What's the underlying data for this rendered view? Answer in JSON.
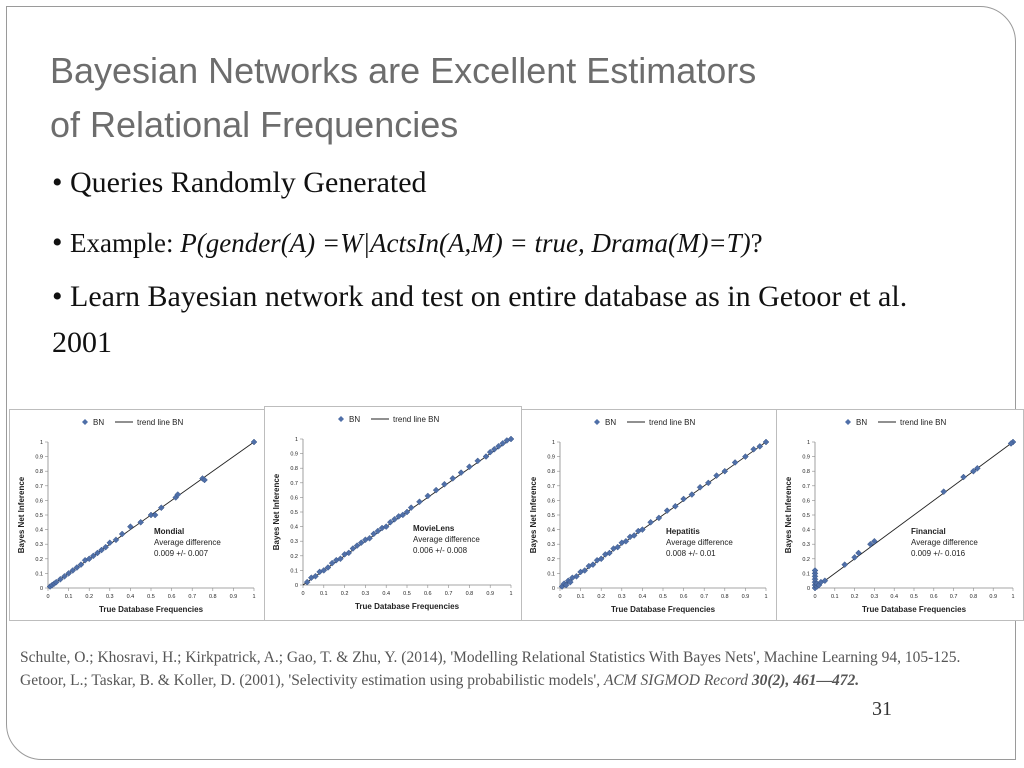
{
  "slide": {
    "title_line1": "Bayesian Networks are Excellent Estimators",
    "title_line2": "of Relational Frequencies",
    "bullet1": "Queries Randomly Generated",
    "bullet2_prefix": "Example: ",
    "bullet2_math": "P(gender(A) =W|ActsIn(A,M) = true, Drama(M)=T)",
    "bullet2_suffix": "?",
    "bullet3": "Learn Bayesian network and test on entire database as in Getoor et al. 2001",
    "page_number": "31"
  },
  "references": {
    "ref1": "Schulte, O.; Khosravi, H.; Kirkpatrick, A.; Gao, T. & Zhu, Y. (2014), 'Modelling Relational Statistics With Bayes Nets', Machine Learning 94, 105-125.",
    "ref2_plain": "Getoor, L.; Taskar, B. & Koller, D. (2001), 'Selectivity estimation using probabilistic models', ",
    "ref2_journal": "ACM SIGMOD Record",
    "ref2_vol": " 30(2), 461—472."
  },
  "chart_data": [
    {
      "type": "scatter",
      "dataset": "Mondial",
      "avg_label": "Average difference",
      "avg_value": "0.009 +/- 0.007",
      "legend": [
        "BN",
        "trend line BN"
      ],
      "xlabel": "True Database Frequencies",
      "ylabel": "Bayes Net Inference",
      "xlim": [
        0,
        1
      ],
      "ylim": [
        0,
        1
      ],
      "xticks": [
        "0",
        "0.1",
        "0.2",
        "0.3",
        "0.4",
        "0.5",
        "0.6",
        "0.7",
        "0.8",
        "0.9",
        "1"
      ],
      "yticks": [
        "0",
        "0.1",
        "0.2",
        "0.3",
        "0.4",
        "0.5",
        "0.6",
        "0.7",
        "0.8",
        "0.9",
        "1"
      ],
      "points": [
        [
          0.01,
          0.01
        ],
        [
          0.02,
          0.02
        ],
        [
          0.03,
          0.03
        ],
        [
          0.04,
          0.04
        ],
        [
          0.06,
          0.06
        ],
        [
          0.08,
          0.08
        ],
        [
          0.1,
          0.1
        ],
        [
          0.12,
          0.12
        ],
        [
          0.14,
          0.14
        ],
        [
          0.16,
          0.16
        ],
        [
          0.18,
          0.19
        ],
        [
          0.2,
          0.2
        ],
        [
          0.22,
          0.22
        ],
        [
          0.24,
          0.24
        ],
        [
          0.26,
          0.26
        ],
        [
          0.28,
          0.28
        ],
        [
          0.3,
          0.31
        ],
        [
          0.33,
          0.33
        ],
        [
          0.36,
          0.37
        ],
        [
          0.4,
          0.42
        ],
        [
          0.45,
          0.45
        ],
        [
          0.5,
          0.5
        ],
        [
          0.52,
          0.5
        ],
        [
          0.55,
          0.55
        ],
        [
          0.62,
          0.62
        ],
        [
          0.63,
          0.64
        ],
        [
          0.75,
          0.75
        ],
        [
          0.76,
          0.74
        ],
        [
          1.0,
          1.0
        ]
      ]
    },
    {
      "type": "scatter",
      "dataset": "MovieLens",
      "avg_label": "Average difference",
      "avg_value": "0.006 +/- 0.008",
      "legend": [
        "BN",
        "trend line BN"
      ],
      "xlabel": "True Database Frequencies",
      "ylabel": "Bayes Net Inference",
      "xlim": [
        0,
        1
      ],
      "ylim": [
        0,
        1
      ],
      "xticks": [
        "0",
        "0.1",
        "0.2",
        "0.3",
        "0.4",
        "0.5",
        "0.6",
        "0.7",
        "0.8",
        "0.9",
        "1"
      ],
      "yticks": [
        "0",
        "0.1",
        "0.2",
        "0.3",
        "0.4",
        "0.5",
        "0.6",
        "0.7",
        "0.8",
        "0.9",
        "1"
      ],
      "points": [
        [
          0.02,
          0.02
        ],
        [
          0.04,
          0.05
        ],
        [
          0.06,
          0.06
        ],
        [
          0.08,
          0.09
        ],
        [
          0.1,
          0.1
        ],
        [
          0.12,
          0.12
        ],
        [
          0.14,
          0.15
        ],
        [
          0.16,
          0.17
        ],
        [
          0.18,
          0.18
        ],
        [
          0.2,
          0.21
        ],
        [
          0.22,
          0.22
        ],
        [
          0.24,
          0.25
        ],
        [
          0.26,
          0.27
        ],
        [
          0.28,
          0.29
        ],
        [
          0.3,
          0.31
        ],
        [
          0.32,
          0.32
        ],
        [
          0.34,
          0.35
        ],
        [
          0.36,
          0.37
        ],
        [
          0.38,
          0.39
        ],
        [
          0.4,
          0.4
        ],
        [
          0.42,
          0.43
        ],
        [
          0.44,
          0.45
        ],
        [
          0.46,
          0.47
        ],
        [
          0.48,
          0.48
        ],
        [
          0.5,
          0.5
        ],
        [
          0.52,
          0.53
        ],
        [
          0.56,
          0.57
        ],
        [
          0.6,
          0.61
        ],
        [
          0.64,
          0.65
        ],
        [
          0.68,
          0.69
        ],
        [
          0.72,
          0.73
        ],
        [
          0.76,
          0.77
        ],
        [
          0.8,
          0.81
        ],
        [
          0.84,
          0.85
        ],
        [
          0.88,
          0.88
        ],
        [
          0.9,
          0.91
        ],
        [
          0.92,
          0.93
        ],
        [
          0.94,
          0.95
        ],
        [
          0.96,
          0.97
        ],
        [
          0.98,
          0.99
        ],
        [
          1.0,
          1.0
        ]
      ]
    },
    {
      "type": "scatter",
      "dataset": "Hepatitis",
      "avg_label": "Average difference",
      "avg_value": "0.008 +/- 0.01",
      "legend": [
        "BN",
        "trend line BN"
      ],
      "xlabel": "True Database Frequencies",
      "ylabel": "Bayes Net Inference",
      "xlim": [
        0,
        1
      ],
      "ylim": [
        0,
        1
      ],
      "xticks": [
        "0",
        "0.1",
        "0.2",
        "0.3",
        "0.4",
        "0.5",
        "0.6",
        "0.7",
        "0.8",
        "0.9",
        "1"
      ],
      "yticks": [
        "0",
        "0.1",
        "0.2",
        "0.3",
        "0.4",
        "0.5",
        "0.6",
        "0.7",
        "0.8",
        "0.9",
        "1"
      ],
      "points": [
        [
          0.01,
          0.01
        ],
        [
          0.02,
          0.03
        ],
        [
          0.03,
          0.02
        ],
        [
          0.04,
          0.05
        ],
        [
          0.05,
          0.04
        ],
        [
          0.06,
          0.07
        ],
        [
          0.08,
          0.08
        ],
        [
          0.1,
          0.11
        ],
        [
          0.12,
          0.12
        ],
        [
          0.14,
          0.15
        ],
        [
          0.16,
          0.16
        ],
        [
          0.18,
          0.19
        ],
        [
          0.2,
          0.2
        ],
        [
          0.22,
          0.23
        ],
        [
          0.24,
          0.24
        ],
        [
          0.26,
          0.27
        ],
        [
          0.28,
          0.28
        ],
        [
          0.3,
          0.31
        ],
        [
          0.32,
          0.32
        ],
        [
          0.34,
          0.35
        ],
        [
          0.36,
          0.36
        ],
        [
          0.38,
          0.39
        ],
        [
          0.4,
          0.4
        ],
        [
          0.44,
          0.45
        ],
        [
          0.48,
          0.48
        ],
        [
          0.52,
          0.53
        ],
        [
          0.56,
          0.56
        ],
        [
          0.6,
          0.61
        ],
        [
          0.64,
          0.64
        ],
        [
          0.68,
          0.69
        ],
        [
          0.72,
          0.72
        ],
        [
          0.76,
          0.77
        ],
        [
          0.8,
          0.8
        ],
        [
          0.85,
          0.86
        ],
        [
          0.9,
          0.9
        ],
        [
          0.94,
          0.95
        ],
        [
          0.97,
          0.97
        ],
        [
          1.0,
          1.0
        ]
      ]
    },
    {
      "type": "scatter",
      "dataset": "Financial",
      "avg_label": "Average difference",
      "avg_value": "0.009 +/- 0.016",
      "legend": [
        "BN",
        "trend line BN"
      ],
      "xlabel": "True Database Frequencies",
      "ylabel": "Bayes Net Inference",
      "xlim": [
        0,
        1
      ],
      "ylim": [
        0,
        1
      ],
      "xticks": [
        "0",
        "0.1",
        "0.2",
        "0.3",
        "0.4",
        "0.5",
        "0.6",
        "0.7",
        "0.8",
        "0.9",
        "1"
      ],
      "yticks": [
        "0",
        "0.1",
        "0.2",
        "0.3",
        "0.4",
        "0.5",
        "0.6",
        "0.7",
        "0.8",
        "0.9",
        "1"
      ],
      "points": [
        [
          0.0,
          0.0
        ],
        [
          0.0,
          0.02
        ],
        [
          0.0,
          0.04
        ],
        [
          0.0,
          0.06
        ],
        [
          0.0,
          0.08
        ],
        [
          0.0,
          0.1
        ],
        [
          0.0,
          0.12
        ],
        [
          0.01,
          0.01
        ],
        [
          0.01,
          0.03
        ],
        [
          0.02,
          0.02
        ],
        [
          0.03,
          0.04
        ],
        [
          0.05,
          0.05
        ],
        [
          0.15,
          0.16
        ],
        [
          0.2,
          0.21
        ],
        [
          0.22,
          0.24
        ],
        [
          0.28,
          0.3
        ],
        [
          0.3,
          0.32
        ],
        [
          0.65,
          0.66
        ],
        [
          0.75,
          0.76
        ],
        [
          0.8,
          0.8
        ],
        [
          0.82,
          0.82
        ],
        [
          1.0,
          1.0
        ],
        [
          0.99,
          0.99
        ]
      ]
    }
  ]
}
